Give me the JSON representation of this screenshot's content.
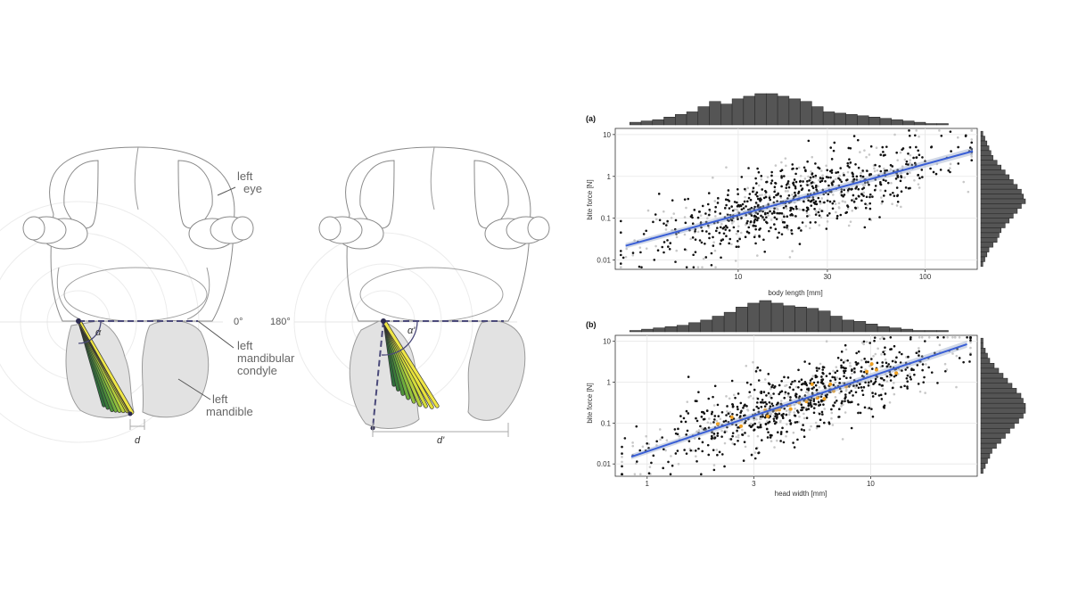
{
  "anatomy": {
    "labels": {
      "left_eye_1": "left",
      "left_eye_2": "eye",
      "zero_deg": "0°",
      "one_eighty_deg": "180°",
      "condyle_1": "left",
      "condyle_2": "mandibular",
      "condyle_3": "condyle",
      "mandible_1": "left",
      "mandible_2": "mandible",
      "alpha": "α",
      "alpha_prime": "α'",
      "d": "d",
      "d_prime": "d'"
    },
    "colors": {
      "outline": "#8a8a8a",
      "mandible_fill": "#e2e2e2",
      "dashed": "#4b4a7a",
      "muscle_dark": "#2f6e3c",
      "muscle_mid": "#6fae3d",
      "muscle_light": "#e8e23a"
    }
  },
  "chart_data": [
    {
      "type": "scatter",
      "panel_label": "(a)",
      "xlabel": "body length [mm]",
      "ylabel": "bite force [N]",
      "xscale": "log",
      "yscale": "log",
      "xlim": [
        2.2,
        190
      ],
      "ylim": [
        0.006,
        14
      ],
      "xticks": [
        10,
        30,
        100
      ],
      "xtick_labels": [
        "10",
        "30",
        "100"
      ],
      "yticks": [
        0.01,
        0.1,
        1,
        10
      ],
      "ytick_labels": [
        "0.01",
        "0.1",
        "1",
        "10"
      ],
      "grid": true,
      "fit_line": {
        "x": [
          2.5,
          180
        ],
        "y": [
          0.022,
          4.0
        ],
        "color": "#3a5fd6"
      },
      "top_hist": [
        2,
        3,
        4,
        6,
        8,
        10,
        14,
        18,
        16,
        20,
        22,
        24,
        24,
        22,
        20,
        18,
        14,
        10,
        9,
        8,
        7,
        6,
        5,
        4,
        3,
        2,
        1,
        1
      ],
      "right_hist": [
        1,
        2,
        3,
        4,
        5,
        6,
        8,
        10,
        12,
        14,
        16,
        18,
        20,
        21,
        22,
        20,
        18,
        16,
        14,
        12,
        10,
        9,
        8,
        6,
        4,
        3,
        2,
        1
      ]
    },
    {
      "type": "scatter",
      "panel_label": "(b)",
      "xlabel": "head width [mm]",
      "ylabel": "bite force [N]",
      "xscale": "log",
      "yscale": "log",
      "xlim": [
        0.72,
        30
      ],
      "ylim": [
        0.005,
        14
      ],
      "xticks": [
        1,
        3,
        10
      ],
      "xtick_labels": [
        "1",
        "3",
        "10"
      ],
      "yticks": [
        0.01,
        0.1,
        1,
        10
      ],
      "ytick_labels": [
        "0.01",
        "0.1",
        "1",
        "10"
      ],
      "grid": true,
      "fit_line": {
        "x": [
          0.85,
          27
        ],
        "y": [
          0.015,
          8.5
        ],
        "color": "#3a5fd6"
      },
      "highlight_color": "#f0a020",
      "top_hist": [
        1,
        2,
        3,
        4,
        5,
        7,
        9,
        12,
        15,
        19,
        22,
        24,
        22,
        20,
        19,
        18,
        16,
        12,
        9,
        8,
        6,
        4,
        3,
        2,
        1,
        1,
        1
      ],
      "right_hist": [
        1,
        1,
        2,
        3,
        4,
        6,
        8,
        10,
        12,
        14,
        16,
        18,
        19,
        20,
        20,
        19,
        17,
        15,
        13,
        11,
        9,
        7,
        5,
        4,
        3,
        2,
        1
      ]
    }
  ]
}
